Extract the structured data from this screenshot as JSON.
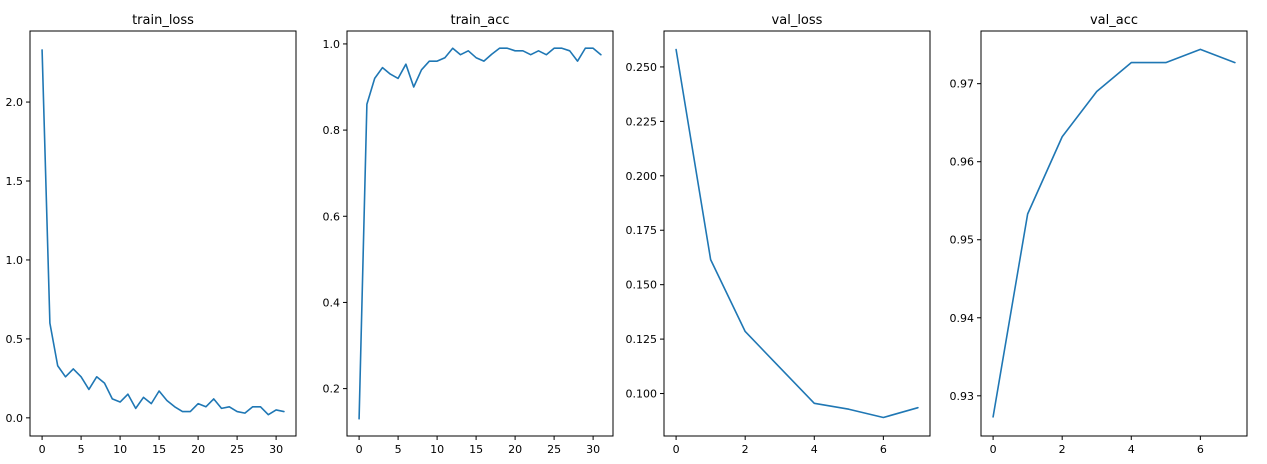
{
  "figure": {
    "line_color": "#1f77b4"
  },
  "chart_data": [
    {
      "type": "line",
      "title": "train_loss",
      "xlabel": "",
      "ylabel": "",
      "grid": false,
      "xlim": [
        -1.55,
        32.55
      ],
      "ylim": [
        -0.115,
        2.45
      ],
      "xticks": [
        0,
        5,
        10,
        15,
        20,
        25,
        30
      ],
      "xtick_labels": [
        "0",
        "5",
        "10",
        "15",
        "20",
        "25",
        "30"
      ],
      "yticks": [
        0.0,
        0.5,
        1.0,
        1.5,
        2.0
      ],
      "ytick_labels": [
        "0.0",
        "0.5",
        "1.0",
        "1.5",
        "2.0"
      ],
      "series": [
        {
          "x": [
            0,
            1,
            2,
            3,
            4,
            5,
            6,
            7,
            8,
            9,
            10,
            11,
            12,
            13,
            14,
            15,
            16,
            17,
            18,
            19,
            20,
            21,
            22,
            23,
            24,
            25,
            26,
            27,
            28,
            29,
            30,
            31
          ],
          "values": [
            2.33,
            0.6,
            0.33,
            0.26,
            0.31,
            0.26,
            0.18,
            0.26,
            0.22,
            0.12,
            0.1,
            0.15,
            0.06,
            0.13,
            0.09,
            0.17,
            0.11,
            0.07,
            0.04,
            0.04,
            0.09,
            0.07,
            0.12,
            0.06,
            0.07,
            0.04,
            0.03,
            0.07,
            0.07,
            0.02,
            0.05,
            0.04
          ]
        }
      ]
    },
    {
      "type": "line",
      "title": "train_acc",
      "xlabel": "",
      "ylabel": "",
      "grid": false,
      "xlim": [
        -1.55,
        32.55
      ],
      "ylim": [
        0.09,
        1.03
      ],
      "xticks": [
        0,
        5,
        10,
        15,
        20,
        25,
        30
      ],
      "xtick_labels": [
        "0",
        "5",
        "10",
        "15",
        "20",
        "25",
        "30"
      ],
      "yticks": [
        0.2,
        0.4,
        0.6,
        0.8,
        1.0
      ],
      "ytick_labels": [
        "0.2",
        "0.4",
        "0.6",
        "0.8",
        "1.0"
      ],
      "series": [
        {
          "x": [
            0,
            1,
            2,
            3,
            4,
            5,
            6,
            7,
            8,
            9,
            10,
            11,
            12,
            13,
            14,
            15,
            16,
            17,
            18,
            19,
            20,
            21,
            22,
            23,
            24,
            25,
            26,
            27,
            28,
            29,
            30,
            31
          ],
          "values": [
            0.13,
            0.86,
            0.92,
            0.945,
            0.93,
            0.92,
            0.953,
            0.9,
            0.94,
            0.96,
            0.96,
            0.968,
            0.99,
            0.975,
            0.984,
            0.968,
            0.96,
            0.976,
            0.99,
            0.99,
            0.984,
            0.984,
            0.975,
            0.984,
            0.975,
            0.99,
            0.99,
            0.984,
            0.96,
            0.99,
            0.99,
            0.975
          ]
        }
      ]
    },
    {
      "type": "line",
      "title": "val_loss",
      "xlabel": "",
      "ylabel": "",
      "grid": false,
      "xlim": [
        -0.35,
        7.35
      ],
      "ylim": [
        0.0805,
        0.2665
      ],
      "xticks": [
        0,
        2,
        4,
        6
      ],
      "xtick_labels": [
        "0",
        "2",
        "4",
        "6"
      ],
      "yticks": [
        0.1,
        0.125,
        0.15,
        0.175,
        0.2,
        0.225,
        0.25
      ],
      "ytick_labels": [
        "0.100",
        "0.125",
        "0.150",
        "0.175",
        "0.200",
        "0.225",
        "0.250"
      ],
      "series": [
        {
          "x": [
            0,
            1,
            2,
            3,
            4,
            5,
            6,
            7
          ],
          "values": [
            0.258,
            0.1615,
            0.1285,
            0.112,
            0.0955,
            0.0928,
            0.089,
            0.0935
          ]
        }
      ]
    },
    {
      "type": "line",
      "title": "val_acc",
      "xlabel": "",
      "ylabel": "",
      "grid": false,
      "xlim": [
        -0.35,
        7.35
      ],
      "ylim": [
        0.92485,
        0.97675
      ],
      "xticks": [
        0,
        2,
        4,
        6
      ],
      "xtick_labels": [
        "0",
        "2",
        "4",
        "6"
      ],
      "yticks": [
        0.93,
        0.94,
        0.95,
        0.96,
        0.97
      ],
      "ytick_labels": [
        "0.93",
        "0.94",
        "0.95",
        "0.96",
        "0.97"
      ],
      "series": [
        {
          "x": [
            0,
            1,
            2,
            3,
            4,
            5,
            6,
            7
          ],
          "values": [
            0.9273,
            0.9533,
            0.9632,
            0.969,
            0.9727,
            0.9727,
            0.9744,
            0.9727
          ]
        }
      ]
    }
  ]
}
